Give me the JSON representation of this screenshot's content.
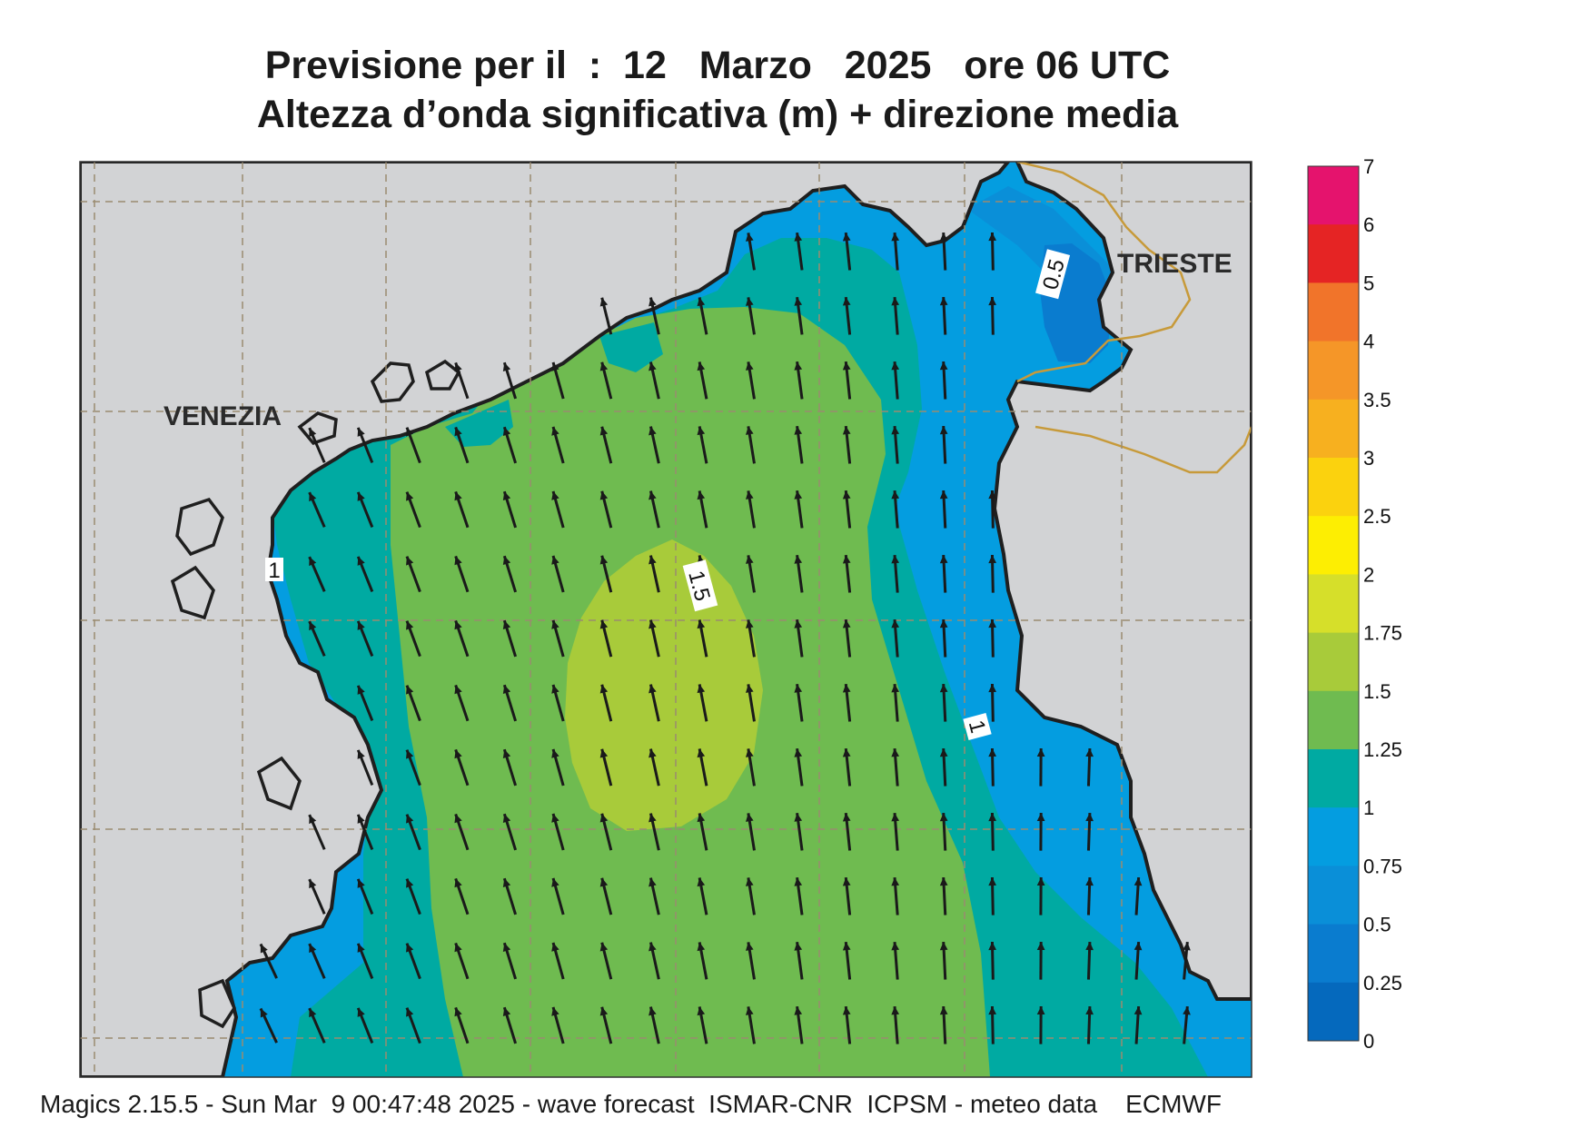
{
  "title": {
    "line1": "Previsione per il  :  12   Marzo   2025   ore 06 UTC",
    "line2": "Altezza d’onda significativa (m) + direzione media"
  },
  "cities": [
    "VENEZIA",
    "TRIESTE"
  ],
  "contour_labels": [
    "1",
    "1.5",
    "1",
    "0.5"
  ],
  "footer": "Magics 2.15.5 - Sun Mar  9 00:47:48 2025 - wave forecast  ISMAR-CNR  ICPSM - meteo data    ECMWF",
  "colorbar": {
    "ticks": [
      "7",
      "6",
      "5",
      "4",
      "3.5",
      "3",
      "2.5",
      "2",
      "1.75",
      "1.5",
      "1.25",
      "1",
      "0.75",
      "0.5",
      "0.25",
      "0"
    ],
    "colors": [
      "#e5136d",
      "#e52424",
      "#f1742a",
      "#f59628",
      "#f7b01f",
      "#fbd20e",
      "#fdee02",
      "#d6df2a",
      "#a8cb3a",
      "#6fbb50",
      "#00aaa2",
      "#049de0",
      "#0a8fd8",
      "#0a7ccf",
      "#0569bd"
    ]
  },
  "legend_colors": {
    "land": "#d2d3d5",
    "coast": "#1f1f1f",
    "border": "#c79a3a",
    "grid": "#9a8b70",
    "arrow": "#1a1a1a"
  },
  "wave_direction": "N-NW"
}
